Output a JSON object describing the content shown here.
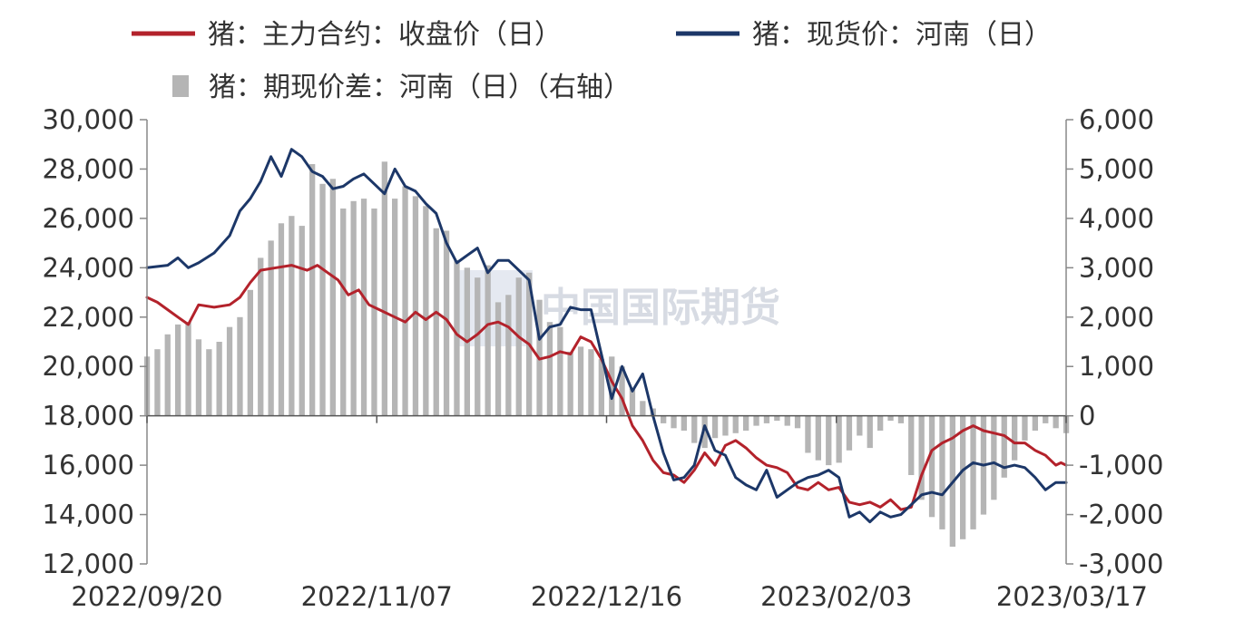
{
  "chart_data": {
    "type": "bar+line",
    "legend": [
      {
        "label": "猪：主力合约：收盘价（日）",
        "color": "#b3222b",
        "kind": "line"
      },
      {
        "label": "猪：现货价：河南（日）",
        "color": "#1c3768",
        "kind": "line"
      },
      {
        "label": "猪：期现价差：河南（日）（右轴）",
        "color": "#b5b5b5",
        "kind": "bar"
      }
    ],
    "watermark": "中国国际期货",
    "left_axis": {
      "min": 12000,
      "max": 30000,
      "ticks": [
        "12,000",
        "14,000",
        "16,000",
        "18,000",
        "20,000",
        "22,000",
        "24,000",
        "26,000",
        "28,000",
        "30,000"
      ]
    },
    "right_axis": {
      "min": -3000,
      "max": 6000,
      "ticks": [
        "-3,000",
        "-2,000",
        "-1,000",
        "0",
        "1,000",
        "2,000",
        "3,000",
        "4,000",
        "5,000",
        "6,000"
      ]
    },
    "x_ticks": [
      "2022/09/20",
      "2022/11/07",
      "2022/12/16",
      "2023/02/03",
      "2023/03/17"
    ],
    "x_range": [
      "2022-09-20",
      "2023-03-17"
    ],
    "series": [
      {
        "name": "猪：主力合约：收盘价（日）",
        "axis": "left",
        "color": "#b3222b",
        "points": [
          [
            "2022-09-20",
            22800
          ],
          [
            "2022-09-22",
            22600
          ],
          [
            "2022-09-24",
            22300
          ],
          [
            "2022-09-26",
            22000
          ],
          [
            "2022-09-28",
            21700
          ],
          [
            "2022-09-30",
            22500
          ],
          [
            "2022-10-03",
            22400
          ],
          [
            "2022-10-06",
            22500
          ],
          [
            "2022-10-08",
            22800
          ],
          [
            "2022-10-10",
            23400
          ],
          [
            "2022-10-12",
            23900
          ],
          [
            "2022-10-15",
            24000
          ],
          [
            "2022-10-18",
            24100
          ],
          [
            "2022-10-21",
            23900
          ],
          [
            "2022-10-23",
            24100
          ],
          [
            "2022-10-25",
            23800
          ],
          [
            "2022-10-27",
            23500
          ],
          [
            "2022-10-29",
            22900
          ],
          [
            "2022-10-31",
            23100
          ],
          [
            "2022-11-02",
            22500
          ],
          [
            "2022-11-04",
            22300
          ],
          [
            "2022-11-07",
            22000
          ],
          [
            "2022-11-09",
            21800
          ],
          [
            "2022-11-11",
            22200
          ],
          [
            "2022-11-13",
            21900
          ],
          [
            "2022-11-15",
            22200
          ],
          [
            "2022-11-17",
            21900
          ],
          [
            "2022-11-19",
            21300
          ],
          [
            "2022-11-21",
            21000
          ],
          [
            "2022-11-23",
            21300
          ],
          [
            "2022-11-25",
            21700
          ],
          [
            "2022-11-27",
            21800
          ],
          [
            "2022-11-29",
            21600
          ],
          [
            "2022-12-01",
            21200
          ],
          [
            "2022-12-03",
            20900
          ],
          [
            "2022-12-05",
            20300
          ],
          [
            "2022-12-07",
            20400
          ],
          [
            "2022-12-09",
            20600
          ],
          [
            "2022-12-11",
            20500
          ],
          [
            "2022-12-13",
            21200
          ],
          [
            "2022-12-15",
            21000
          ],
          [
            "2022-12-17",
            20300
          ],
          [
            "2022-12-19",
            19400
          ],
          [
            "2022-12-21",
            18700
          ],
          [
            "2022-12-23",
            17600
          ],
          [
            "2022-12-25",
            17000
          ],
          [
            "2022-12-27",
            16200
          ],
          [
            "2022-12-29",
            15700
          ],
          [
            "2022-12-31",
            15600
          ],
          [
            "2023-01-02",
            15300
          ],
          [
            "2023-01-04",
            15800
          ],
          [
            "2023-01-06",
            16500
          ],
          [
            "2023-01-08",
            16000
          ],
          [
            "2023-01-10",
            16800
          ],
          [
            "2023-01-12",
            17000
          ],
          [
            "2023-01-14",
            16700
          ],
          [
            "2023-01-16",
            16300
          ],
          [
            "2023-01-18",
            16000
          ],
          [
            "2023-01-20",
            15900
          ],
          [
            "2023-01-22",
            15700
          ],
          [
            "2023-01-24",
            15100
          ],
          [
            "2023-01-26",
            15000
          ],
          [
            "2023-01-28",
            15300
          ],
          [
            "2023-01-30",
            15000
          ],
          [
            "2023-02-01",
            15100
          ],
          [
            "2023-02-03",
            14500
          ],
          [
            "2023-02-05",
            14400
          ],
          [
            "2023-02-07",
            14500
          ],
          [
            "2023-02-09",
            14300
          ],
          [
            "2023-02-11",
            14600
          ],
          [
            "2023-02-13",
            14200
          ],
          [
            "2023-02-15",
            14300
          ],
          [
            "2023-02-17",
            15600
          ],
          [
            "2023-02-19",
            16600
          ],
          [
            "2023-02-21",
            16900
          ],
          [
            "2023-02-23",
            17100
          ],
          [
            "2023-02-25",
            17400
          ],
          [
            "2023-02-27",
            17600
          ],
          [
            "2023-03-01",
            17400
          ],
          [
            "2023-03-03",
            17300
          ],
          [
            "2023-03-05",
            17200
          ],
          [
            "2023-03-07",
            16900
          ],
          [
            "2023-03-09",
            16900
          ],
          [
            "2023-03-11",
            16600
          ],
          [
            "2023-03-13",
            16400
          ],
          [
            "2023-03-15",
            16000
          ],
          [
            "2023-03-16",
            16100
          ],
          [
            "2023-03-17",
            16000
          ]
        ]
      },
      {
        "name": "猪：现货价：河南（日）",
        "axis": "left",
        "color": "#1c3768",
        "points": [
          [
            "2022-09-20",
            24000
          ],
          [
            "2022-09-24",
            24100
          ],
          [
            "2022-09-26",
            24400
          ],
          [
            "2022-09-28",
            24000
          ],
          [
            "2022-09-30",
            24200
          ],
          [
            "2022-10-03",
            24600
          ],
          [
            "2022-10-06",
            25300
          ],
          [
            "2022-10-08",
            26300
          ],
          [
            "2022-10-10",
            26800
          ],
          [
            "2022-10-12",
            27500
          ],
          [
            "2022-10-14",
            28500
          ],
          [
            "2022-10-16",
            27700
          ],
          [
            "2022-10-18",
            28800
          ],
          [
            "2022-10-20",
            28500
          ],
          [
            "2022-10-22",
            27900
          ],
          [
            "2022-10-24",
            27700
          ],
          [
            "2022-10-26",
            27200
          ],
          [
            "2022-10-28",
            27300
          ],
          [
            "2022-10-30",
            27600
          ],
          [
            "2022-11-01",
            27800
          ],
          [
            "2022-11-03",
            27400
          ],
          [
            "2022-11-05",
            27000
          ],
          [
            "2022-11-07",
            28000
          ],
          [
            "2022-11-09",
            27300
          ],
          [
            "2022-11-11",
            27100
          ],
          [
            "2022-11-13",
            26600
          ],
          [
            "2022-11-15",
            26200
          ],
          [
            "2022-11-17",
            25000
          ],
          [
            "2022-11-19",
            24200
          ],
          [
            "2022-11-21",
            24500
          ],
          [
            "2022-11-23",
            24800
          ],
          [
            "2022-11-25",
            23800
          ],
          [
            "2022-11-27",
            24300
          ],
          [
            "2022-11-29",
            24300
          ],
          [
            "2022-12-01",
            23900
          ],
          [
            "2022-12-03",
            23500
          ],
          [
            "2022-12-05",
            21100
          ],
          [
            "2022-12-07",
            21600
          ],
          [
            "2022-12-09",
            21700
          ],
          [
            "2022-12-11",
            22400
          ],
          [
            "2022-12-13",
            22300
          ],
          [
            "2022-12-15",
            22300
          ],
          [
            "2022-12-17",
            20500
          ],
          [
            "2022-12-19",
            18700
          ],
          [
            "2022-12-21",
            20000
          ],
          [
            "2022-12-23",
            19000
          ],
          [
            "2022-12-25",
            19700
          ],
          [
            "2022-12-27",
            18000
          ],
          [
            "2022-12-29",
            16500
          ],
          [
            "2022-12-31",
            15400
          ],
          [
            "2023-01-02",
            15500
          ],
          [
            "2023-01-04",
            16000
          ],
          [
            "2023-01-06",
            17600
          ],
          [
            "2023-01-08",
            16600
          ],
          [
            "2023-01-10",
            16400
          ],
          [
            "2023-01-12",
            15500
          ],
          [
            "2023-01-14",
            15200
          ],
          [
            "2023-01-16",
            15000
          ],
          [
            "2023-01-18",
            15800
          ],
          [
            "2023-01-20",
            14700
          ],
          [
            "2023-01-22",
            15000
          ],
          [
            "2023-01-24",
            15300
          ],
          [
            "2023-01-26",
            15500
          ],
          [
            "2023-01-28",
            15600
          ],
          [
            "2023-01-30",
            15800
          ],
          [
            "2023-02-01",
            15500
          ],
          [
            "2023-02-03",
            13900
          ],
          [
            "2023-02-05",
            14100
          ],
          [
            "2023-02-07",
            13700
          ],
          [
            "2023-02-09",
            14100
          ],
          [
            "2023-02-11",
            13900
          ],
          [
            "2023-02-13",
            14000
          ],
          [
            "2023-02-15",
            14400
          ],
          [
            "2023-02-17",
            14800
          ],
          [
            "2023-02-19",
            14900
          ],
          [
            "2023-02-21",
            14800
          ],
          [
            "2023-02-23",
            15300
          ],
          [
            "2023-02-25",
            15800
          ],
          [
            "2023-02-27",
            16100
          ],
          [
            "2023-03-01",
            16000
          ],
          [
            "2023-03-03",
            16100
          ],
          [
            "2023-03-05",
            15900
          ],
          [
            "2023-03-07",
            16000
          ],
          [
            "2023-03-09",
            15900
          ],
          [
            "2023-03-11",
            15500
          ],
          [
            "2023-03-13",
            15000
          ],
          [
            "2023-03-15",
            15300
          ],
          [
            "2023-03-17",
            15300
          ]
        ]
      }
    ],
    "bars": {
      "name": "猪：期现价差：河南（日）（右轴）",
      "axis": "right",
      "color": "#b5b5b5",
      "start": "2022-09-20",
      "step_days": 2,
      "values": [
        1200,
        1350,
        1650,
        1850,
        1900,
        1550,
        1350,
        1500,
        1800,
        2000,
        2550,
        3200,
        3550,
        3900,
        4050,
        3850,
        5100,
        4700,
        4800,
        4200,
        4350,
        4400,
        4200,
        5150,
        4400,
        4650,
        4450,
        4250,
        3800,
        3750,
        3150,
        3000,
        2800,
        3050,
        2300,
        2450,
        2800,
        2900,
        2350,
        1900,
        1800,
        1300,
        1400,
        1350,
        1150,
        1200,
        1000,
        550,
        300,
        150,
        -150,
        -250,
        -300,
        -550,
        -650,
        -450,
        -400,
        -350,
        -300,
        -200,
        -150,
        -100,
        -200,
        -250,
        -750,
        -900,
        -1000,
        -950,
        -700,
        -400,
        -650,
        -300,
        -100,
        -150,
        -1200,
        -1700,
        -2050,
        -2300,
        -2650,
        -2500,
        -2300,
        -2000,
        -1700,
        -1250,
        -900,
        -500,
        -300,
        -150,
        -250,
        -350,
        -500,
        -750,
        -800
      ]
    }
  }
}
